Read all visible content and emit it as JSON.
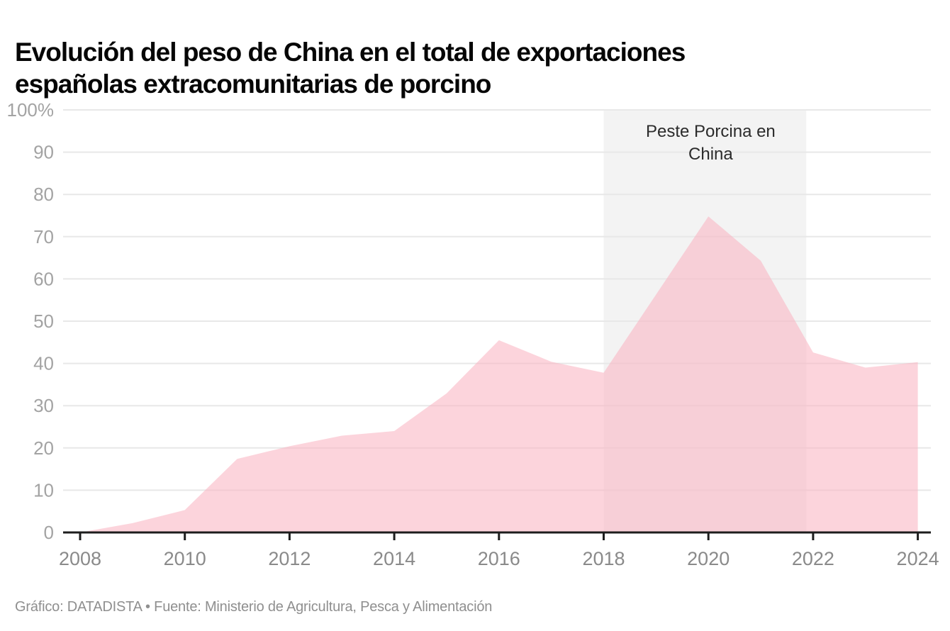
{
  "header": {
    "title": "Evolución del peso de China en el total de exportaciones españolas extracomunitarias de porcino",
    "title_lines": [
      "Evolución del peso de China en el total de exportaciones",
      "españolas extracomunitarias de porcino"
    ]
  },
  "footer": {
    "credit": "Gráfico: DATADISTA • Fuente: Ministerio de Agricultura, Pesca y Alimentación"
  },
  "chart_data": {
    "type": "area",
    "title": "Evolución del peso de China en el total de exportaciones españolas extracomunitarias de porcino",
    "x": [
      2008,
      2009,
      2010,
      2011,
      2012,
      2013,
      2014,
      2015,
      2016,
      2017,
      2018,
      2019,
      2020,
      2021,
      2022,
      2023,
      2024
    ],
    "values": [
      0,
      2.2,
      5.3,
      17.4,
      20.4,
      22.9,
      24.0,
      32.9,
      45.5,
      40.4,
      37.8,
      56.3,
      74.8,
      64.3,
      42.6,
      39.0,
      40.3
    ],
    "xlabel": "",
    "ylabel": "",
    "ylim": [
      0,
      100
    ],
    "grid": true,
    "legend": false,
    "yticks": [
      0,
      10,
      20,
      30,
      40,
      50,
      60,
      70,
      80,
      90,
      100
    ],
    "ytick_labels": [
      "0",
      "10",
      "20",
      "30",
      "40",
      "50",
      "60",
      "70",
      "80",
      "90",
      "100%"
    ],
    "xticks": [
      2008,
      2010,
      2012,
      2014,
      2016,
      2018,
      2020,
      2022,
      2024
    ],
    "xtick_labels": [
      "2008",
      "2010",
      "2012",
      "2014",
      "2016",
      "2018",
      "2020",
      "2022",
      "2024"
    ],
    "annotation_band": {
      "label": "Peste Porcina en China",
      "label_lines": [
        "Peste Porcina en",
        "China"
      ],
      "x_from": 2018,
      "x_to": 2021.87
    }
  },
  "colors": {
    "area_fill": "rgba(249,176,191,0.55)",
    "band_fill": "#f3f3f3",
    "gridline": "#e8e8e8",
    "axis": "#1d1d1d",
    "ytick_label": "#a3a3a3",
    "xtick_label": "#8a8a8a",
    "band_label": "#2b2b2b",
    "title": "#060606",
    "footer": "#8f8f8f"
  }
}
